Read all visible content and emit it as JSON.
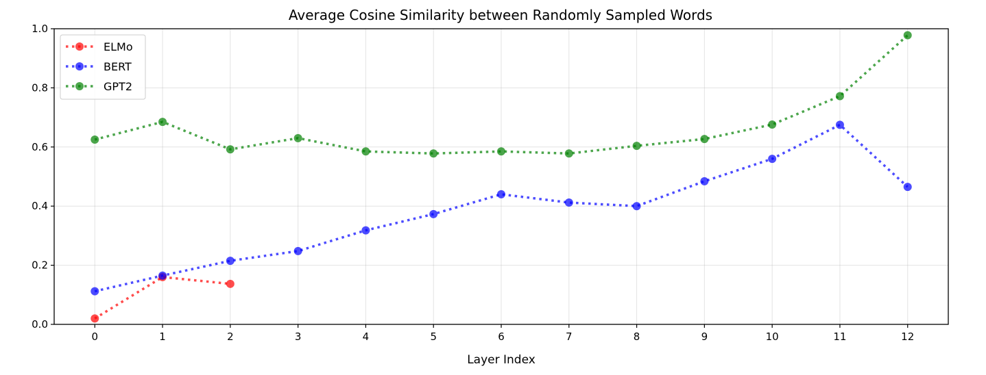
{
  "chart_data": {
    "type": "line",
    "title": "Average Cosine Similarity between Randomly Sampled Words",
    "xlabel": "Layer Index",
    "ylabel": "",
    "xlim": [
      -0.6,
      12.6
    ],
    "ylim": [
      0,
      1.0
    ],
    "x_ticks": [
      0,
      1,
      2,
      3,
      4,
      5,
      6,
      7,
      8,
      9,
      10,
      11,
      12
    ],
    "y_ticks": [
      0.0,
      0.2,
      0.4,
      0.6,
      0.8,
      1.0
    ],
    "y_tick_labels": [
      "0.0",
      "0.2",
      "0.4",
      "0.6",
      "0.8",
      "1.0"
    ],
    "grid": true,
    "legend_position": "top-left",
    "line_style": "dotted",
    "series": [
      {
        "name": "ELMo",
        "color": "#ff0000",
        "x": [
          0,
          1,
          2
        ],
        "values": [
          0.02,
          0.16,
          0.137
        ]
      },
      {
        "name": "BERT",
        "color": "#0000ff",
        "x": [
          0,
          1,
          2,
          3,
          4,
          5,
          6,
          7,
          8,
          9,
          10,
          11,
          12
        ],
        "values": [
          0.112,
          0.165,
          0.215,
          0.248,
          0.318,
          0.373,
          0.44,
          0.412,
          0.4,
          0.484,
          0.56,
          0.675,
          0.465
        ]
      },
      {
        "name": "GPT2",
        "color": "#008000",
        "x": [
          0,
          1,
          2,
          3,
          4,
          5,
          6,
          7,
          8,
          9,
          10,
          11,
          12
        ],
        "values": [
          0.625,
          0.685,
          0.592,
          0.63,
          0.585,
          0.578,
          0.585,
          0.578,
          0.604,
          0.627,
          0.676,
          0.772,
          0.978
        ]
      }
    ]
  }
}
